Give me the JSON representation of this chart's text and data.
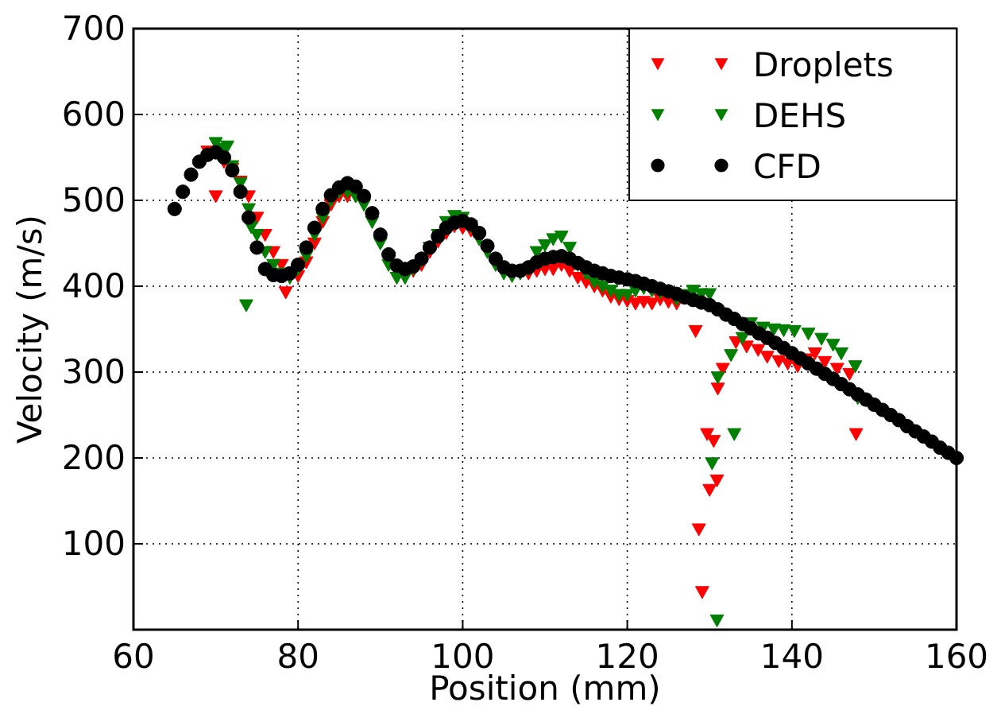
{
  "chart_data": {
    "type": "scatter",
    "xlabel": "Position (mm)",
    "ylabel": "Velocity (m/s)",
    "xlim": [
      60,
      160
    ],
    "ylim": [
      0,
      700
    ],
    "xticks": [
      60,
      80,
      100,
      120,
      140,
      160
    ],
    "yticks": [
      100,
      200,
      300,
      400,
      500,
      600,
      700
    ],
    "grid": true,
    "legend": "top right",
    "series": [
      {
        "name": "Droplets",
        "color": "#ff0000",
        "marker": "triangle",
        "x": [
          69,
          70,
          71,
          72,
          73,
          74,
          75,
          76,
          77,
          78,
          78.5,
          80,
          81,
          82,
          83,
          84,
          85,
          86,
          87,
          94,
          95,
          96,
          97,
          98,
          99,
          100,
          101,
          108,
          109,
          110,
          111,
          112,
          113,
          114,
          115,
          116,
          117,
          118,
          119,
          120,
          121,
          122,
          123,
          124,
          125,
          126,
          128.3,
          128.7,
          129.1,
          129.7,
          130,
          130.5,
          130.9,
          131,
          131.6,
          133.2,
          134.5,
          135.9,
          137,
          138.4,
          139.5,
          140.7,
          141.8,
          142.8,
          144,
          145.5,
          147,
          147.8
        ],
        "values": [
          557,
          505,
          545,
          537,
          522,
          505,
          480,
          460,
          440,
          425,
          393,
          412,
          428,
          450,
          475,
          495,
          505,
          505,
          505,
          418,
          425,
          440,
          452,
          462,
          470,
          468,
          465,
          415,
          418,
          420,
          420,
          425,
          418,
          410,
          405,
          400,
          395,
          388,
          385,
          383,
          380,
          382,
          380,
          385,
          382,
          380,
          348,
          117,
          44,
          228,
          163,
          220,
          174,
          281,
          304,
          335,
          330,
          326,
          318,
          313,
          310,
          307,
          315,
          322,
          312,
          304,
          298,
          228
        ]
      },
      {
        "name": "DEHS",
        "color": "#007f00",
        "marker": "triangle",
        "x": [
          70,
          71,
          71.4,
          72,
          73,
          73.7,
          74,
          74.3,
          75,
          76,
          77,
          78,
          79,
          80,
          81,
          82,
          83,
          84,
          85,
          86,
          87,
          88,
          89,
          90,
          91,
          92,
          93,
          94,
          95,
          96,
          97,
          98,
          99,
          100,
          101,
          102,
          103,
          104,
          105,
          106,
          107,
          108,
          109,
          110,
          111,
          112,
          113,
          114,
          115,
          116,
          117,
          118,
          119,
          120,
          121,
          122,
          123,
          124,
          126,
          127,
          128,
          129,
          130,
          130.3,
          130.9,
          131,
          132.6,
          133,
          134,
          135,
          136.5,
          137.8,
          139,
          140.3,
          142,
          143.6,
          145,
          146,
          147.7,
          148
        ],
        "values": [
          567,
          560,
          563,
          540,
          520,
          378,
          490,
          469,
          460,
          440,
          425,
          415,
          410,
          420,
          435,
          460,
          480,
          500,
          510,
          510,
          505,
          495,
          475,
          450,
          425,
          410,
          410,
          420,
          430,
          445,
          460,
          475,
          482,
          480,
          470,
          455,
          440,
          425,
          415,
          412,
          415,
          420,
          440,
          448,
          455,
          458,
          445,
          425,
          415,
          405,
          400,
          395,
          390,
          390,
          395,
          398,
          395,
          393,
          385,
          390,
          395,
          391,
          391,
          194,
          11,
          294,
          320,
          228,
          340,
          357,
          352,
          350,
          349,
          348,
          345,
          339,
          332,
          322,
          307,
          270
        ]
      },
      {
        "name": "CFD",
        "color": "#000000",
        "marker": "circle",
        "x": [
          65,
          66,
          67,
          68,
          69,
          70,
          71,
          72,
          73,
          74,
          75,
          76,
          77,
          78,
          79,
          80,
          81,
          82,
          83,
          84,
          85,
          86,
          87,
          88,
          89,
          90,
          91,
          92,
          93,
          94,
          95,
          96,
          97,
          98,
          99,
          100,
          101,
          102,
          103,
          104,
          105,
          106,
          107,
          108,
          109,
          110,
          111,
          112,
          113,
          114,
          115,
          116,
          117,
          118,
          119,
          120,
          121,
          122,
          123,
          124,
          125,
          126,
          127,
          128,
          129,
          130,
          131,
          132,
          133,
          134,
          135,
          136,
          137,
          138,
          139,
          140,
          141,
          142,
          143,
          144,
          145,
          146,
          147,
          148,
          149,
          150,
          151,
          152,
          153,
          154,
          155,
          156,
          157,
          158,
          159,
          160
        ],
        "values": [
          490,
          510,
          530,
          545,
          553,
          556,
          550,
          535,
          510,
          480,
          445,
          420,
          413,
          412,
          415,
          425,
          445,
          468,
          490,
          506,
          515,
          520,
          516,
          505,
          485,
          460,
          437,
          424,
          420,
          423,
          432,
          445,
          458,
          468,
          474,
          476,
          472,
          462,
          447,
          432,
          422,
          418,
          418,
          422,
          428,
          432,
          434,
          435,
          432,
          427,
          422,
          418,
          415,
          412,
          410,
          408,
          406,
          403,
          400,
          397,
          394,
          391,
          387,
          384,
          381,
          378,
          373,
          367,
          362,
          356,
          351,
          345,
          340,
          334,
          328,
          322,
          316,
          310,
          304,
          298,
          292,
          286,
          280,
          274,
          268,
          262,
          256,
          250,
          244,
          237,
          231,
          225,
          219,
          212,
          206,
          200
        ]
      }
    ]
  }
}
